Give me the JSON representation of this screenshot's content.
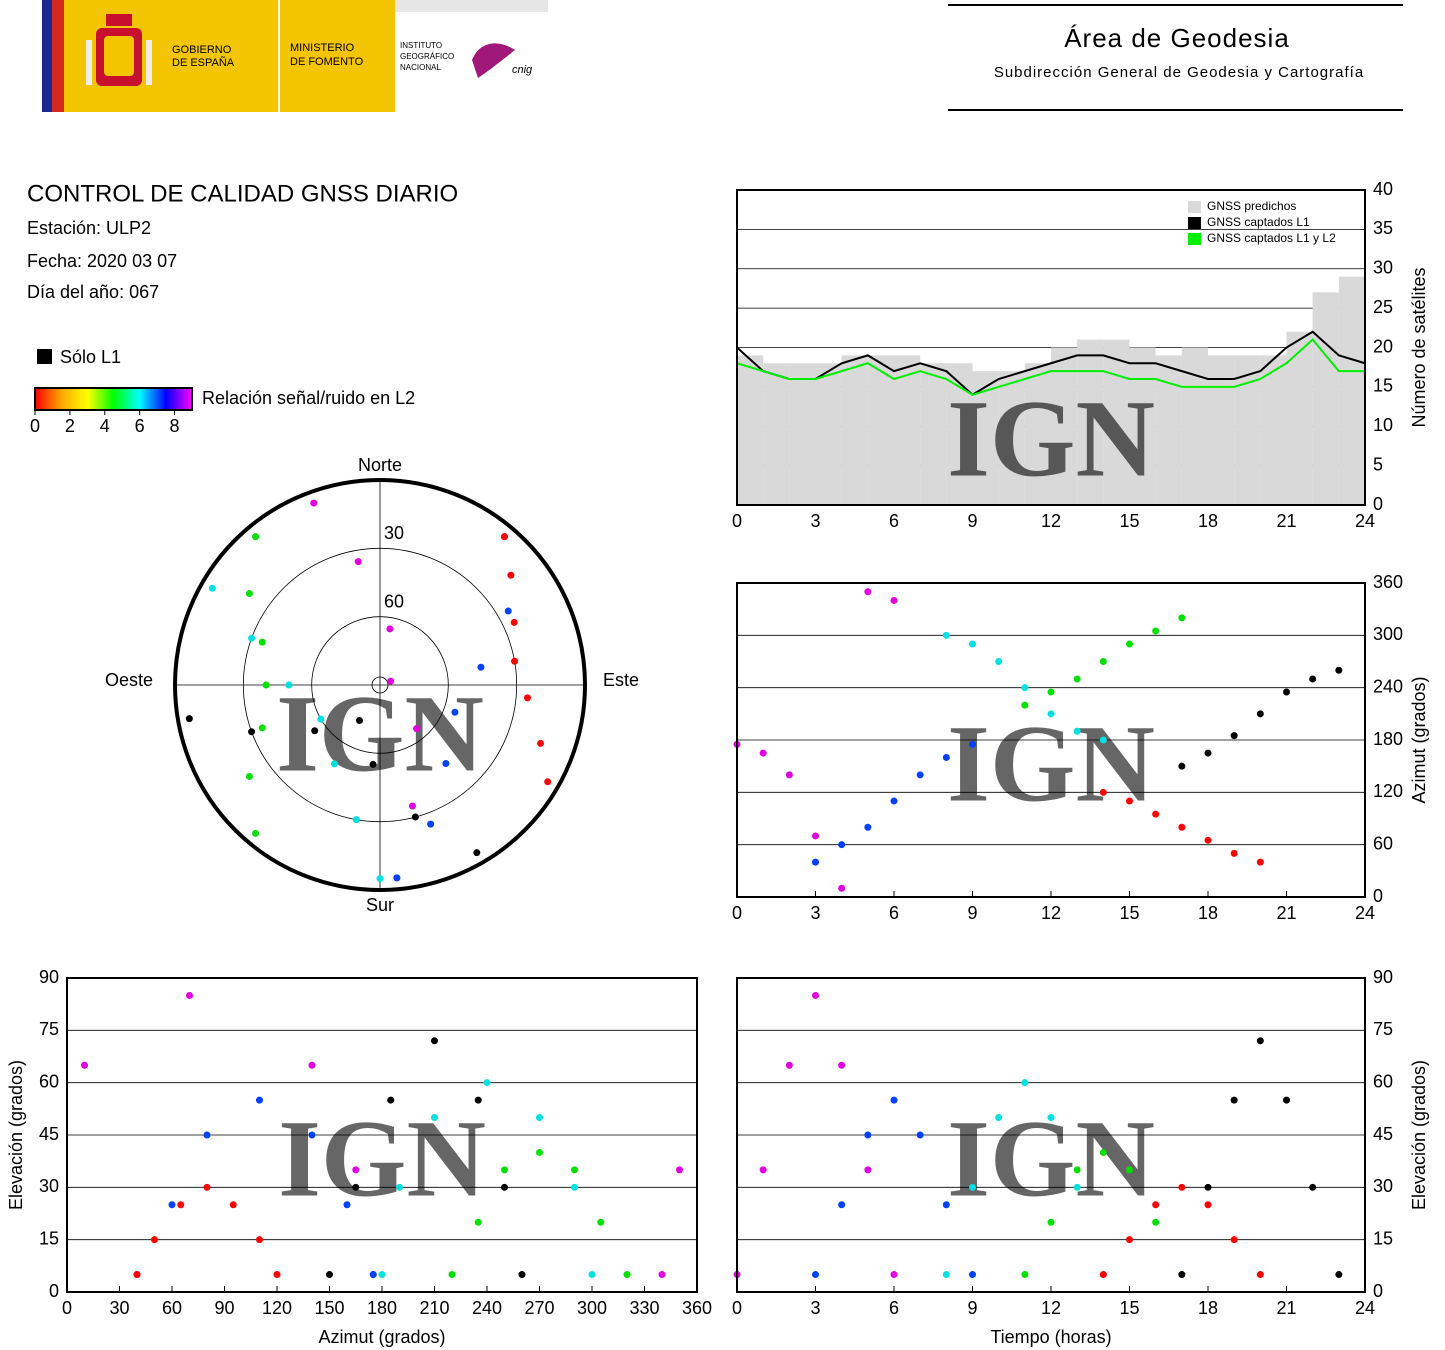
{
  "header": {
    "gov": [
      "GOBIERNO",
      "DE ESPAÑA"
    ],
    "ministry": [
      "MINISTERIO",
      "DE FOMENTO"
    ],
    "institute": [
      "INSTITUTO",
      "GEOGRÁFICO",
      "NACIONAL"
    ],
    "cnig": "cnig",
    "area": "Área de Geodesia",
    "subdirection": "Subdirección General de Geodesia y Cartografía",
    "watermark": "IGN"
  },
  "report": {
    "title": "CONTROL DE CALIDAD GNSS DIARIO",
    "station": "Estación: ULP2",
    "date": "Fecha: 2020 03 07",
    "doy": "Día del año: 067"
  },
  "legend": {
    "l1_only": "Sólo L1",
    "snr_label": "Relación señal/ruido en L2",
    "colors": [
      "#ff0000",
      "#ffa500",
      "#ffff00",
      "#00ff00",
      "#00ffff",
      "#0000ff",
      "#ff00ff"
    ],
    "lim": [
      0,
      9
    ],
    "ticks": [
      0,
      2,
      4,
      6,
      8
    ]
  },
  "chart_data": [
    {
      "type": "polar",
      "labels": {
        "north": "Norte",
        "south": "Sur",
        "east": "Este",
        "west": "Oeste"
      },
      "rings": [
        30,
        60
      ],
      "series": [
        {
          "color": "#e000e0",
          "azimuth": [
            175,
            165,
            140,
            70,
            10,
            350,
            340
          ],
          "elevation": [
            5,
            35,
            65,
            85,
            65,
            35,
            5
          ]
        },
        {
          "color": "#0040ff",
          "azimuth": [
            40,
            60,
            80,
            110,
            140,
            160,
            175
          ],
          "elevation": [
            5,
            25,
            45,
            55,
            45,
            25,
            5
          ]
        },
        {
          "color": "#00e0e0",
          "azimuth": [
            300,
            290,
            270,
            240,
            210,
            190,
            180
          ],
          "elevation": [
            5,
            30,
            50,
            60,
            50,
            30,
            5
          ]
        },
        {
          "color": "#00e000",
          "azimuth": [
            220,
            235,
            250,
            270,
            290,
            305,
            320
          ],
          "elevation": [
            5,
            20,
            35,
            40,
            35,
            20,
            5
          ]
        },
        {
          "color": "#ff0000",
          "azimuth": [
            120,
            110,
            95,
            80,
            65,
            50,
            40
          ],
          "elevation": [
            5,
            15,
            25,
            30,
            25,
            15,
            5
          ]
        },
        {
          "color": "#000000",
          "azimuth": [
            150,
            165,
            185,
            210,
            235,
            250,
            260
          ],
          "elevation": [
            5,
            30,
            55,
            72,
            55,
            30,
            5
          ]
        }
      ]
    },
    {
      "type": "step",
      "ylabel": "Número de satélites",
      "y_axis_side": "right",
      "grid": true,
      "legend": "top-right",
      "xlim": [
        0,
        24
      ],
      "xticks": [
        0,
        3,
        6,
        9,
        12,
        15,
        18,
        21,
        24
      ],
      "ylim": [
        0,
        40
      ],
      "yticks": [
        0,
        5,
        10,
        15,
        20,
        25,
        30,
        35,
        40
      ],
      "x": [
        0,
        1,
        2,
        3,
        4,
        5,
        6,
        7,
        8,
        9,
        10,
        11,
        12,
        13,
        14,
        15,
        16,
        17,
        18,
        19,
        20,
        21,
        22,
        23,
        24
      ],
      "series": [
        {
          "name": "GNSS predichos",
          "color": "#d9d9d9",
          "values": [
            19,
            18,
            18,
            18,
            19,
            19,
            19,
            18,
            18,
            17,
            17,
            18,
            20,
            21,
            21,
            20,
            19,
            20,
            19,
            19,
            19,
            22,
            27,
            29,
            24
          ]
        },
        {
          "name": "GNSS captados L1",
          "color": "#000000",
          "values": [
            20,
            17,
            16,
            16,
            18,
            19,
            17,
            18,
            17,
            14,
            16,
            17,
            18,
            19,
            19,
            18,
            18,
            17,
            16,
            16,
            17,
            20,
            22,
            19,
            18
          ]
        },
        {
          "name": "GNSS captados L1 y L2",
          "color": "#00ee00",
          "values": [
            18,
            17,
            16,
            16,
            17,
            18,
            16,
            17,
            16,
            14,
            15,
            16,
            17,
            17,
            17,
            16,
            16,
            15,
            15,
            15,
            16,
            18,
            21,
            17,
            17
          ]
        }
      ]
    },
    {
      "type": "scatter",
      "ylabel": "Azimut (grados)",
      "y_axis_side": "right",
      "grid": true,
      "xlim": [
        0,
        24
      ],
      "xticks": [
        0,
        3,
        6,
        9,
        12,
        15,
        18,
        21,
        24
      ],
      "ylim": [
        0,
        360
      ],
      "yticks": [
        0,
        60,
        120,
        180,
        240,
        300,
        360
      ],
      "series": [
        {
          "color": "#e000e0",
          "x": [
            0,
            1,
            2,
            3,
            4,
            5,
            6
          ],
          "values": [
            175,
            165,
            140,
            70,
            10,
            350,
            340
          ]
        },
        {
          "color": "#0040ff",
          "x": [
            3,
            4,
            5,
            6,
            7,
            8,
            9
          ],
          "values": [
            40,
            60,
            80,
            110,
            140,
            160,
            175
          ]
        },
        {
          "color": "#00e0e0",
          "x": [
            8,
            9,
            10,
            11,
            12,
            13,
            14
          ],
          "values": [
            300,
            290,
            270,
            240,
            210,
            190,
            180
          ]
        },
        {
          "color": "#00e000",
          "x": [
            11,
            12,
            13,
            14,
            15,
            16,
            17
          ],
          "values": [
            220,
            235,
            250,
            270,
            290,
            305,
            320
          ]
        },
        {
          "color": "#ff0000",
          "x": [
            14,
            15,
            16,
            17,
            18,
            19,
            20
          ],
          "values": [
            120,
            110,
            95,
            80,
            65,
            50,
            40
          ]
        },
        {
          "color": "#000000",
          "x": [
            17,
            18,
            19,
            20,
            21,
            22,
            23
          ],
          "values": [
            150,
            165,
            185,
            210,
            235,
            250,
            260
          ]
        }
      ]
    },
    {
      "type": "scatter",
      "xlabel": "Azimut (grados)",
      "ylabel": "Elevación (grados)",
      "y_axis_side": "left",
      "grid": true,
      "xlim": [
        0,
        360
      ],
      "xticks": [
        0,
        30,
        60,
        90,
        120,
        150,
        180,
        210,
        240,
        270,
        300,
        330,
        360
      ],
      "ylim": [
        0,
        90
      ],
      "yticks": [
        0,
        15,
        30,
        45,
        60,
        75,
        90
      ],
      "series": [
        {
          "color": "#e000e0",
          "x": [
            175,
            165,
            140,
            70,
            10,
            350,
            340
          ],
          "values": [
            5,
            35,
            65,
            85,
            65,
            35,
            5
          ]
        },
        {
          "color": "#0040ff",
          "x": [
            40,
            60,
            80,
            110,
            140,
            160,
            175
          ],
          "values": [
            5,
            25,
            45,
            55,
            45,
            25,
            5
          ]
        },
        {
          "color": "#00e0e0",
          "x": [
            300,
            290,
            270,
            240,
            210,
            190,
            180
          ],
          "values": [
            5,
            30,
            50,
            60,
            50,
            30,
            5
          ]
        },
        {
          "color": "#00e000",
          "x": [
            220,
            235,
            250,
            270,
            290,
            305,
            320
          ],
          "values": [
            5,
            20,
            35,
            40,
            35,
            20,
            5
          ]
        },
        {
          "color": "#ff0000",
          "x": [
            120,
            110,
            95,
            80,
            65,
            50,
            40
          ],
          "values": [
            5,
            15,
            25,
            30,
            25,
            15,
            5
          ]
        },
        {
          "color": "#000000",
          "x": [
            150,
            165,
            185,
            210,
            235,
            250,
            260
          ],
          "values": [
            5,
            30,
            55,
            72,
            55,
            30,
            5
          ]
        }
      ]
    },
    {
      "type": "scatter",
      "xlabel": "Tiempo (horas)",
      "ylabel": "Elevación (grados)",
      "y_axis_side": "right",
      "grid": true,
      "xlim": [
        0,
        24
      ],
      "xticks": [
        0,
        3,
        6,
        9,
        12,
        15,
        18,
        21,
        24
      ],
      "ylim": [
        0,
        90
      ],
      "yticks": [
        0,
        15,
        30,
        45,
        60,
        75,
        90
      ],
      "series": [
        {
          "color": "#e000e0",
          "x": [
            0,
            1,
            2,
            3,
            4,
            5,
            6
          ],
          "values": [
            5,
            35,
            65,
            85,
            65,
            35,
            5
          ]
        },
        {
          "color": "#0040ff",
          "x": [
            3,
            4,
            5,
            6,
            7,
            8,
            9
          ],
          "values": [
            5,
            25,
            45,
            55,
            45,
            25,
            5
          ]
        },
        {
          "color": "#00e0e0",
          "x": [
            8,
            9,
            10,
            11,
            12,
            13,
            14
          ],
          "values": [
            5,
            30,
            50,
            60,
            50,
            30,
            5
          ]
        },
        {
          "color": "#00e000",
          "x": [
            11,
            12,
            13,
            14,
            15,
            16,
            17
          ],
          "values": [
            5,
            20,
            35,
            40,
            35,
            20,
            5
          ]
        },
        {
          "color": "#ff0000",
          "x": [
            14,
            15,
            16,
            17,
            18,
            19,
            20
          ],
          "values": [
            5,
            15,
            25,
            30,
            25,
            15,
            5
          ]
        },
        {
          "color": "#000000",
          "x": [
            17,
            18,
            19,
            20,
            21,
            22,
            23
          ],
          "values": [
            5,
            30,
            55,
            72,
            55,
            30,
            5
          ]
        }
      ]
    }
  ]
}
